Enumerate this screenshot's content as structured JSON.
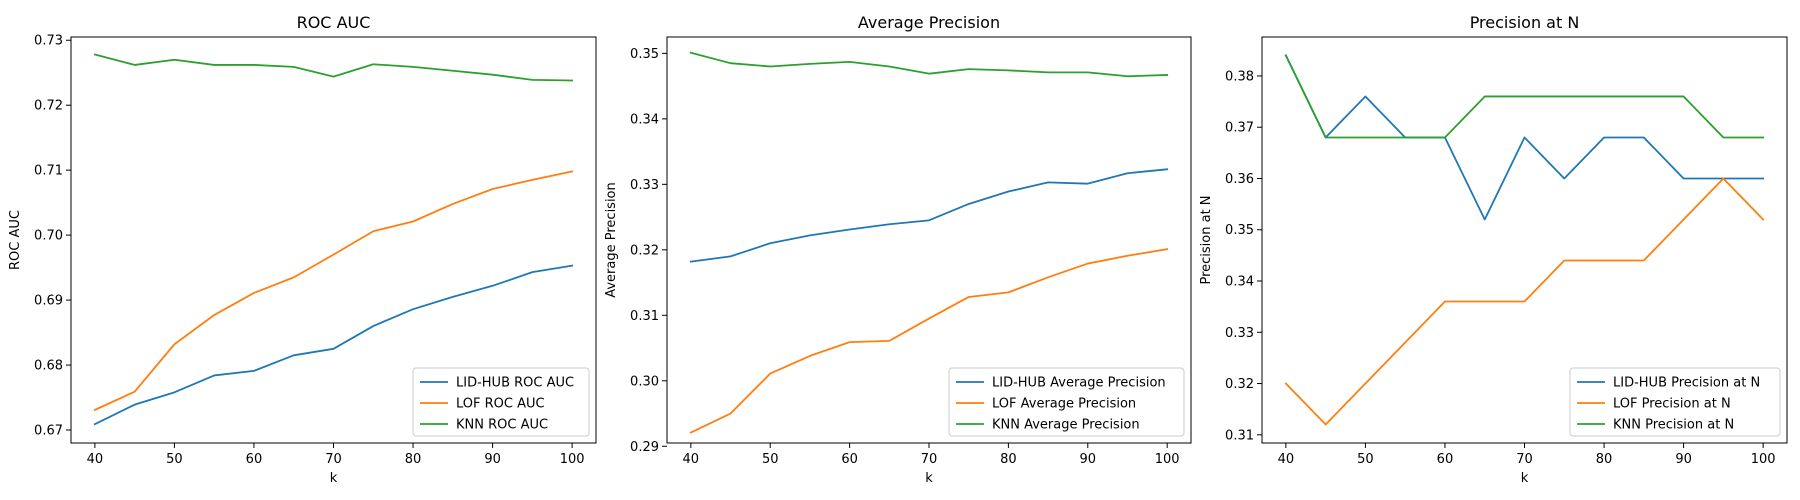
{
  "chart_data": [
    {
      "type": "line",
      "title": "ROC AUC",
      "xlabel": "k",
      "ylabel": "ROC AUC",
      "x": [
        40,
        45,
        50,
        55,
        60,
        65,
        70,
        75,
        80,
        85,
        90,
        95,
        100
      ],
      "xlim": [
        37,
        103
      ],
      "ylim": [
        0.668,
        0.7305
      ],
      "xticks": [
        40,
        50,
        60,
        70,
        80,
        90,
        100
      ],
      "yticks": [
        0.67,
        0.68,
        0.69,
        0.7,
        0.71,
        0.72,
        0.73
      ],
      "ytick_labels": [
        "0.67",
        "0.68",
        "0.69",
        "0.70",
        "0.71",
        "0.72",
        "0.73"
      ],
      "grid": false,
      "legend_position": "lower-right",
      "series": [
        {
          "name": "LID-HUB ROC AUC",
          "color": "#1f77b4",
          "values": [
            0.6709,
            0.6739,
            0.6758,
            0.6784,
            0.6791,
            0.6815,
            0.6825,
            0.686,
            0.6886,
            0.6905,
            0.6922,
            0.6943,
            0.6953
          ]
        },
        {
          "name": "LOF ROC AUC",
          "color": "#ff7f0e",
          "values": [
            0.6731,
            0.6759,
            0.6832,
            0.6877,
            0.6911,
            0.6935,
            0.697,
            0.7006,
            0.7021,
            0.7048,
            0.7071,
            0.7085,
            0.7098
          ]
        },
        {
          "name": "KNN ROC AUC",
          "color": "#2ca02c",
          "values": [
            0.7278,
            0.7262,
            0.727,
            0.7262,
            0.7262,
            0.7259,
            0.7244,
            0.7263,
            0.7259,
            0.7253,
            0.7247,
            0.7239,
            0.7238
          ]
        }
      ]
    },
    {
      "type": "line",
      "title": "Average Precision",
      "xlabel": "k",
      "ylabel": "Average Precision",
      "x": [
        40,
        45,
        50,
        55,
        60,
        65,
        70,
        75,
        80,
        85,
        90,
        95,
        100
      ],
      "xlim": [
        37,
        103
      ],
      "ylim": [
        0.2905,
        0.3525
      ],
      "xticks": [
        40,
        50,
        60,
        70,
        80,
        90,
        100
      ],
      "yticks": [
        0.29,
        0.3,
        0.31,
        0.32,
        0.33,
        0.34,
        0.35
      ],
      "ytick_labels": [
        "0.29",
        "0.30",
        "0.31",
        "0.32",
        "0.33",
        "0.34",
        "0.35"
      ],
      "grid": false,
      "legend_position": "lower-right",
      "series": [
        {
          "name": "LID-HUB Average Precision",
          "color": "#1f77b4",
          "values": [
            0.3182,
            0.319,
            0.321,
            0.3222,
            0.3231,
            0.3239,
            0.3245,
            0.327,
            0.3289,
            0.3303,
            0.3301,
            0.3317,
            0.3323
          ]
        },
        {
          "name": "LOF Average Precision",
          "color": "#ff7f0e",
          "values": [
            0.2921,
            0.295,
            0.3011,
            0.3038,
            0.3059,
            0.3061,
            0.3095,
            0.3128,
            0.3135,
            0.3158,
            0.3179,
            0.3191,
            0.3201
          ]
        },
        {
          "name": "KNN Average Precision",
          "color": "#2ca02c",
          "values": [
            0.3501,
            0.3485,
            0.348,
            0.3484,
            0.3487,
            0.348,
            0.3469,
            0.3476,
            0.3474,
            0.3471,
            0.3471,
            0.3465,
            0.3467
          ]
        }
      ]
    },
    {
      "type": "line",
      "title": "Precision at N",
      "xlabel": "k",
      "ylabel": "Precision at N",
      "x": [
        40,
        45,
        50,
        55,
        60,
        65,
        70,
        75,
        80,
        85,
        90,
        95,
        100
      ],
      "xlim": [
        37,
        103
      ],
      "ylim": [
        0.3084,
        0.3876
      ],
      "xticks": [
        40,
        50,
        60,
        70,
        80,
        90,
        100
      ],
      "yticks": [
        0.31,
        0.32,
        0.33,
        0.34,
        0.35,
        0.36,
        0.37,
        0.38
      ],
      "ytick_labels": [
        "0.31",
        "0.32",
        "0.33",
        "0.34",
        "0.35",
        "0.36",
        "0.37",
        "0.38"
      ],
      "grid": false,
      "legend_position": "lower-right",
      "series": [
        {
          "name": "LID-HUB Precision at N",
          "color": "#1f77b4",
          "values": [
            0.384,
            0.368,
            0.376,
            0.368,
            0.368,
            0.352,
            0.368,
            0.36,
            0.368,
            0.368,
            0.36,
            0.36,
            0.36
          ]
        },
        {
          "name": "LOF Precision at N",
          "color": "#ff7f0e",
          "values": [
            0.32,
            0.312,
            0.32,
            0.328,
            0.336,
            0.336,
            0.336,
            0.344,
            0.344,
            0.344,
            0.352,
            0.36,
            0.352
          ]
        },
        {
          "name": "KNN Precision at N",
          "color": "#2ca02c",
          "values": [
            0.384,
            0.368,
            0.368,
            0.368,
            0.368,
            0.376,
            0.376,
            0.376,
            0.376,
            0.376,
            0.376,
            0.368,
            0.368
          ]
        }
      ]
    }
  ]
}
